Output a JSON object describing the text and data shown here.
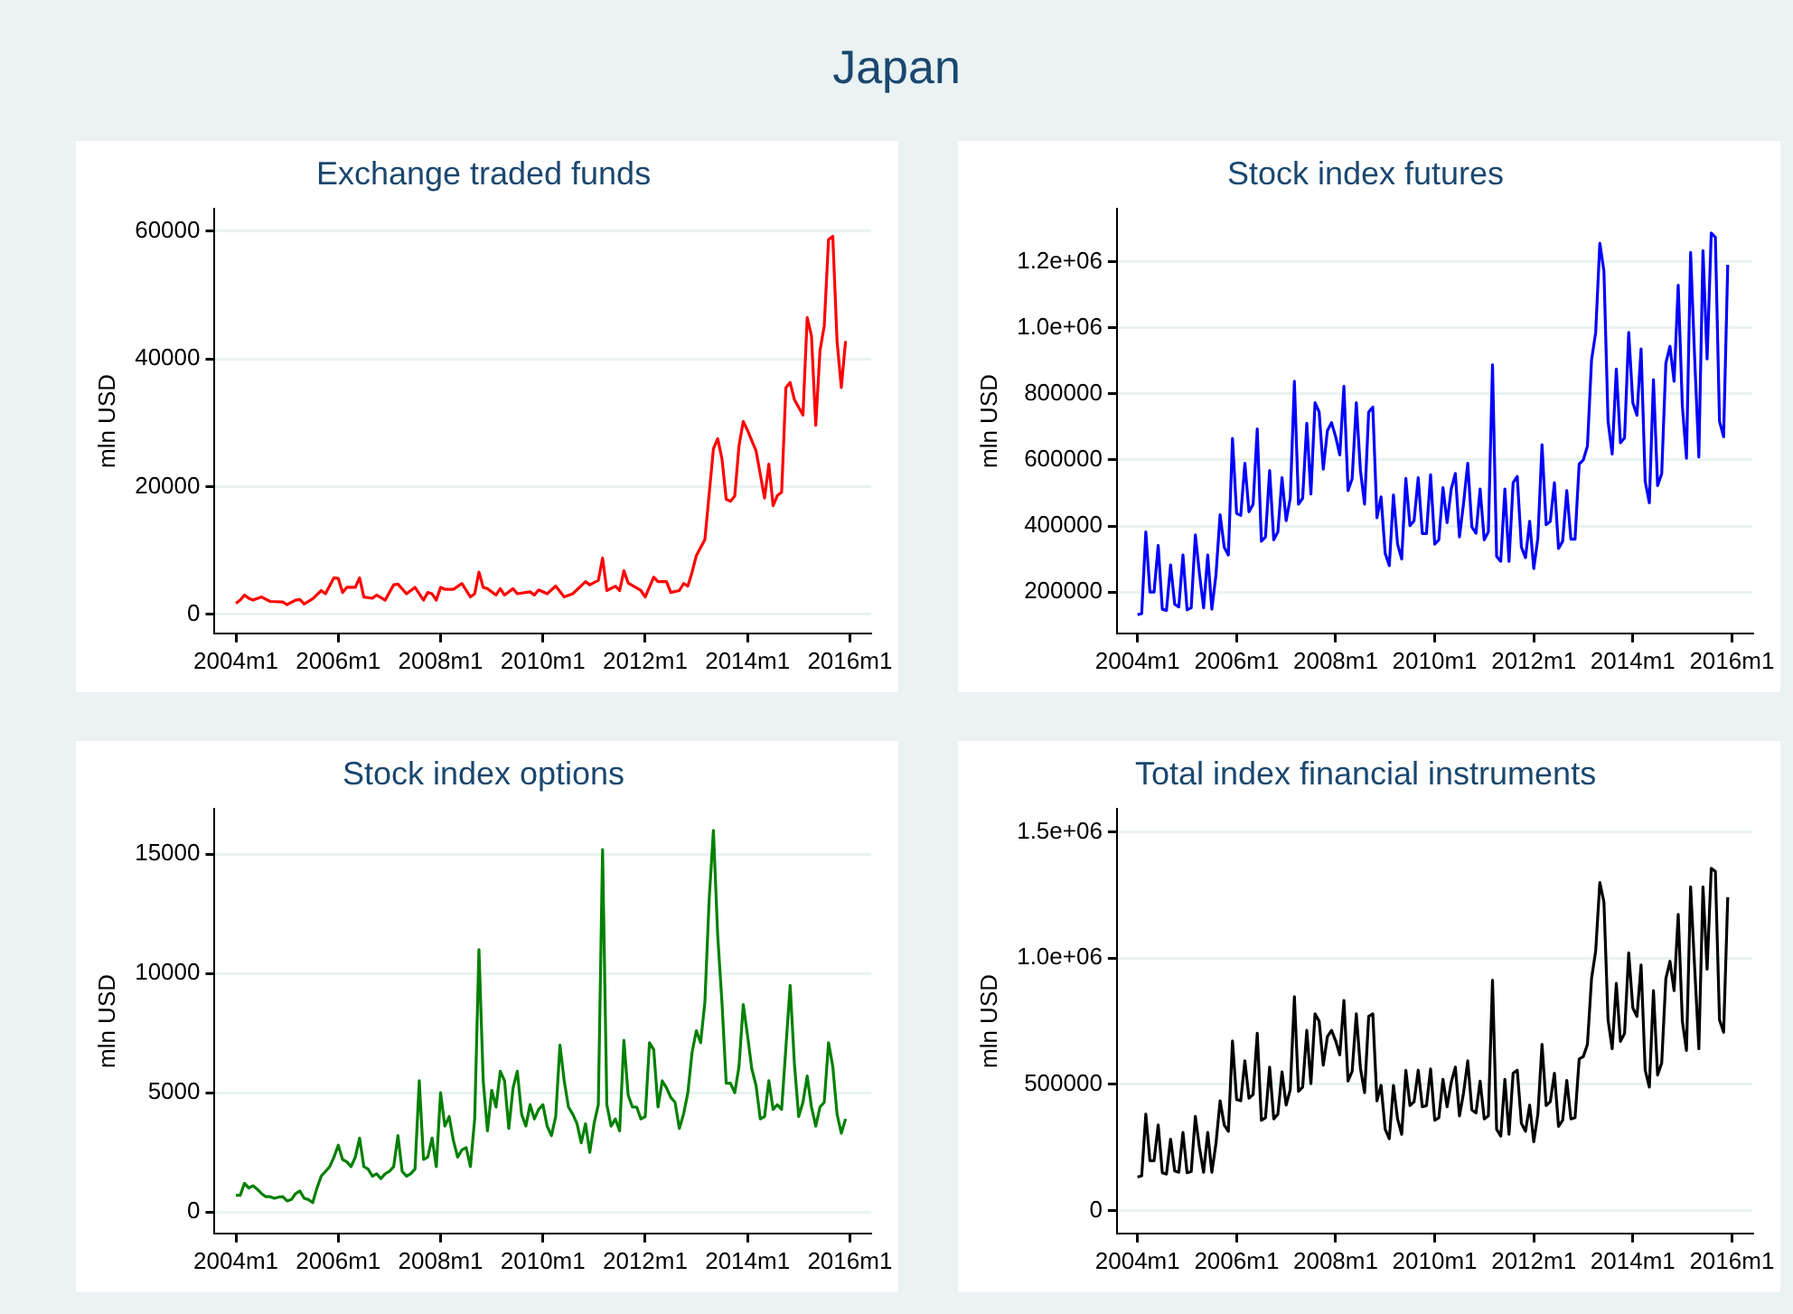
{
  "chart_data": [
    {
      "type": "other",
      "title": "Japan"
    },
    {
      "type": "line",
      "title": "Exchange traded funds",
      "ylabel": "mln USD",
      "grid": "y",
      "legend": false,
      "marker": "none",
      "line_style": "solid",
      "xlim": [
        "2003-08",
        "2016-06"
      ],
      "xticks": [
        {
          "value": "2004-01",
          "label": "2004m1"
        },
        {
          "value": "2006-01",
          "label": "2006m1"
        },
        {
          "value": "2008-01",
          "label": "2008m1"
        },
        {
          "value": "2010-01",
          "label": "2010m1"
        },
        {
          "value": "2012-01",
          "label": "2012m1"
        },
        {
          "value": "2014-01",
          "label": "2014m1"
        },
        {
          "value": "2016-01",
          "label": "2016m1"
        }
      ],
      "ylim": [
        -3000,
        63500
      ],
      "yticks": [
        0,
        20000,
        40000,
        60000
      ],
      "series": [
        {
          "color": "#ff0000",
          "x": [
            "2004-01",
            "2004-02",
            "2004-03",
            "2004-04",
            "2004-05",
            "2004-07",
            "2004-09",
            "2004-12",
            "2005-01",
            "2005-03",
            "2005-04",
            "2005-05",
            "2005-07",
            "2005-09",
            "2005-10",
            "2005-12",
            "2006-01",
            "2006-02",
            "2006-03",
            "2006-05",
            "2006-06",
            "2006-07",
            "2006-09",
            "2006-10",
            "2006-12",
            "2007-02",
            "2007-03",
            "2007-05",
            "2007-07",
            "2007-09",
            "2007-10",
            "2007-11",
            "2007-12",
            "2008-01",
            "2008-02",
            "2008-04",
            "2008-06",
            "2008-08",
            "2008-09",
            "2008-10",
            "2008-11",
            "2008-12",
            "2009-02",
            "2009-03",
            "2009-04",
            "2009-06",
            "2009-07",
            "2009-10",
            "2009-11",
            "2009-12",
            "2010-02",
            "2010-04",
            "2010-06",
            "2010-08",
            "2010-11",
            "2010-12",
            "2011-02",
            "2011-03",
            "2011-04",
            "2011-06",
            "2011-07",
            "2011-08",
            "2011-09",
            "2011-12",
            "2012-01",
            "2012-03",
            "2012-04",
            "2012-06",
            "2012-07",
            "2012-09",
            "2012-10",
            "2012-11",
            "2012-12",
            "2013-01",
            "2013-03",
            "2013-05",
            "2013-06",
            "2013-07",
            "2013-08",
            "2013-09",
            "2013-10",
            "2013-11",
            "2013-12",
            "2014-01",
            "2014-03",
            "2014-05",
            "2014-06",
            "2014-07",
            "2014-08",
            "2014-09",
            "2014-10",
            "2014-11",
            "2014-12",
            "2015-02",
            "2015-03",
            "2015-04",
            "2015-05",
            "2015-06",
            "2015-07",
            "2015-08",
            "2015-09",
            "2015-10",
            "2015-11",
            "2015-12"
          ],
          "values": [
            1700,
            2200,
            3000,
            2500,
            2200,
            2700,
            2000,
            1900,
            1500,
            2200,
            2300,
            1600,
            2400,
            3700,
            3200,
            5700,
            5600,
            3400,
            4200,
            4200,
            5700,
            2700,
            2500,
            3000,
            2200,
            4600,
            4700,
            3200,
            4200,
            2200,
            3400,
            3200,
            2200,
            4200,
            3900,
            3900,
            4800,
            2700,
            3200,
            6600,
            4200,
            4000,
            3000,
            4000,
            3000,
            4000,
            3200,
            3500,
            3000,
            3800,
            3200,
            4400,
            2700,
            3200,
            5100,
            4600,
            5300,
            8800,
            3700,
            4400,
            3700,
            6800,
            4900,
            3700,
            2700,
            5800,
            5100,
            5100,
            3400,
            3700,
            4800,
            4400,
            6600,
            9200,
            11700,
            25900,
            27500,
            24400,
            18000,
            17700,
            18500,
            26400,
            30200,
            28800,
            25600,
            18200,
            23500,
            17000,
            18600,
            19100,
            35500,
            36300,
            33600,
            31200,
            46500,
            43600,
            29600,
            41300,
            45200,
            58700,
            59200,
            42800,
            35500,
            42800
          ]
        }
      ]
    },
    {
      "type": "line",
      "title": "Stock index futures",
      "ylabel": "mln USD",
      "grid": "y",
      "legend": false,
      "marker": "none",
      "line_style": "solid",
      "xlim": [
        "2003-08",
        "2016-06"
      ],
      "xticks": [
        {
          "value": "2004-01",
          "label": "2004m1"
        },
        {
          "value": "2006-01",
          "label": "2006m1"
        },
        {
          "value": "2008-01",
          "label": "2008m1"
        },
        {
          "value": "2010-01",
          "label": "2010m1"
        },
        {
          "value": "2012-01",
          "label": "2012m1"
        },
        {
          "value": "2014-01",
          "label": "2014m1"
        },
        {
          "value": "2016-01",
          "label": "2016m1"
        }
      ],
      "ylim": [
        75000,
        1360000
      ],
      "yticks": [
        200000,
        400000,
        600000,
        800000,
        {
          "value": 1000000,
          "label": "1.0e+06"
        },
        {
          "value": 1200000,
          "label": "1.2e+06"
        }
      ],
      "series": [
        {
          "color": "#0000ff",
          "x": [
            "2004-01",
            "2004-02",
            "2004-03",
            "2004-04",
            "2004-05",
            "2004-06",
            "2004-07",
            "2004-08",
            "2004-09",
            "2004-10",
            "2004-11",
            "2004-12",
            "2005-01",
            "2005-02",
            "2005-03",
            "2005-04",
            "2005-05",
            "2005-06",
            "2005-07",
            "2005-08",
            "2005-09",
            "2005-10",
            "2005-11",
            "2005-12",
            "2006-01",
            "2006-02",
            "2006-03",
            "2006-04",
            "2006-05",
            "2006-06",
            "2006-07",
            "2006-08",
            "2006-09",
            "2006-10",
            "2006-11",
            "2006-12",
            "2007-01",
            "2007-02",
            "2007-03",
            "2007-04",
            "2007-05",
            "2007-06",
            "2007-07",
            "2007-08",
            "2007-09",
            "2007-10",
            "2007-11",
            "2007-12",
            "2008-01",
            "2008-02",
            "2008-03",
            "2008-04",
            "2008-05",
            "2008-06",
            "2008-07",
            "2008-08",
            "2008-09",
            "2008-10",
            "2008-11",
            "2008-12",
            "2009-01",
            "2009-02",
            "2009-03",
            "2009-04",
            "2009-05",
            "2009-06",
            "2009-07",
            "2009-08",
            "2009-09",
            "2009-10",
            "2009-11",
            "2009-12",
            "2010-01",
            "2010-02",
            "2010-03",
            "2010-04",
            "2010-05",
            "2010-06",
            "2010-07",
            "2010-08",
            "2010-09",
            "2010-10",
            "2010-11",
            "2010-12",
            "2011-01",
            "2011-02",
            "2011-03",
            "2011-04",
            "2011-05",
            "2011-06",
            "2011-07",
            "2011-08",
            "2011-09",
            "2011-10",
            "2011-11",
            "2011-12",
            "2012-01",
            "2012-02",
            "2012-03",
            "2012-04",
            "2012-05",
            "2012-06",
            "2012-07",
            "2012-08",
            "2012-09",
            "2012-10",
            "2012-11",
            "2012-12",
            "2013-01",
            "2013-02",
            "2013-03",
            "2013-04",
            "2013-05",
            "2013-06",
            "2013-07",
            "2013-08",
            "2013-09",
            "2013-10",
            "2013-11",
            "2013-12",
            "2014-01",
            "2014-02",
            "2014-03",
            "2014-04",
            "2014-05",
            "2014-06",
            "2014-07",
            "2014-08",
            "2014-09",
            "2014-10",
            "2014-11",
            "2014-12",
            "2015-01",
            "2015-02",
            "2015-03",
            "2015-04",
            "2015-05",
            "2015-06",
            "2015-07",
            "2015-08",
            "2015-09",
            "2015-10",
            "2015-11",
            "2015-12"
          ],
          "values": [
            131000,
            135000,
            382000,
            200000,
            200000,
            341000,
            148000,
            144000,
            282000,
            163000,
            155000,
            312000,
            146000,
            152000,
            373000,
            256000,
            152000,
            312000,
            148000,
            252000,
            434000,
            336000,
            312000,
            665000,
            438000,
            432000,
            590000,
            443000,
            466000,
            694000,
            354000,
            367000,
            568000,
            358000,
            382000,
            546000,
            416000,
            484000,
            838000,
            466000,
            484000,
            711000,
            497000,
            773000,
            745000,
            572000,
            689000,
            713000,
            670000,
            615000,
            823000,
            507000,
            544000,
            773000,
            568000,
            466000,
            745000,
            760000,
            425000,
            488000,
            317000,
            280000,
            494000,
            345000,
            300000,
            544000,
            401000,
            416000,
            546000,
            377000,
            377000,
            555000,
            345000,
            358000,
            516000,
            410000,
            512000,
            559000,
            367000,
            470000,
            590000,
            397000,
            378000,
            512000,
            358000,
            382000,
            888000,
            308000,
            293000,
            512000,
            293000,
            531000,
            550000,
            336000,
            304000,
            414000,
            271000,
            364000,
            646000,
            404000,
            414000,
            531000,
            332000,
            354000,
            507000,
            360000,
            360000,
            587000,
            600000,
            642000,
            903000,
            986000,
            1256000,
            1172000,
            717000,
            618000,
            875000,
            652000,
            667000,
            986000,
            773000,
            735000,
            936000,
            535000,
            470000,
            843000,
            522000,
            559000,
            893000,
            944000,
            838000,
            1129000,
            763000,
            605000,
            1228000,
            903000,
            609000,
            1234000,
            906000,
            1287000,
            1274000,
            717000,
            670000,
            1191000
          ]
        }
      ]
    },
    {
      "type": "line",
      "title": "Stock index options",
      "ylabel": "mln USD",
      "grid": "y",
      "legend": false,
      "marker": "none",
      "line_style": "solid",
      "xlim": [
        "2003-08",
        "2016-06"
      ],
      "xticks": [
        {
          "value": "2004-01",
          "label": "2004m1"
        },
        {
          "value": "2006-01",
          "label": "2006m1"
        },
        {
          "value": "2008-01",
          "label": "2008m1"
        },
        {
          "value": "2010-01",
          "label": "2010m1"
        },
        {
          "value": "2012-01",
          "label": "2012m1"
        },
        {
          "value": "2014-01",
          "label": "2014m1"
        },
        {
          "value": "2016-01",
          "label": "2016m1"
        }
      ],
      "ylim": [
        -900,
        16900
      ],
      "yticks": [
        0,
        5000,
        10000,
        15000
      ],
      "series": [
        {
          "color": "#008000",
          "x": [
            "2004-01",
            "2004-02",
            "2004-03",
            "2004-04",
            "2004-05",
            "2004-06",
            "2004-07",
            "2004-08",
            "2004-09",
            "2004-10",
            "2004-11",
            "2004-12",
            "2005-01",
            "2005-02",
            "2005-03",
            "2005-04",
            "2005-05",
            "2005-06",
            "2005-07",
            "2005-08",
            "2005-09",
            "2005-10",
            "2005-11",
            "2005-12",
            "2006-01",
            "2006-02",
            "2006-03",
            "2006-04",
            "2006-05",
            "2006-06",
            "2006-07",
            "2006-08",
            "2006-09",
            "2006-10",
            "2006-11",
            "2006-12",
            "2007-01",
            "2007-02",
            "2007-03",
            "2007-04",
            "2007-05",
            "2007-06",
            "2007-07",
            "2007-08",
            "2007-09",
            "2007-10",
            "2007-11",
            "2007-12",
            "2008-01",
            "2008-02",
            "2008-03",
            "2008-04",
            "2008-05",
            "2008-06",
            "2008-07",
            "2008-08",
            "2008-09",
            "2008-10",
            "2008-11",
            "2008-12",
            "2009-01",
            "2009-02",
            "2009-03",
            "2009-04",
            "2009-05",
            "2009-06",
            "2009-07",
            "2009-08",
            "2009-09",
            "2009-10",
            "2009-11",
            "2009-12",
            "2010-01",
            "2010-02",
            "2010-03",
            "2010-04",
            "2010-05",
            "2010-06",
            "2010-07",
            "2010-08",
            "2010-09",
            "2010-10",
            "2010-11",
            "2010-12",
            "2011-01",
            "2011-02",
            "2011-03",
            "2011-04",
            "2011-05",
            "2011-06",
            "2011-07",
            "2011-08",
            "2011-09",
            "2011-10",
            "2011-11",
            "2011-12",
            "2012-01",
            "2012-02",
            "2012-03",
            "2012-04",
            "2012-05",
            "2012-06",
            "2012-07",
            "2012-08",
            "2012-09",
            "2012-10",
            "2012-11",
            "2012-12",
            "2013-01",
            "2013-02",
            "2013-03",
            "2013-04",
            "2013-05",
            "2013-06",
            "2013-07",
            "2013-08",
            "2013-09",
            "2013-10",
            "2013-11",
            "2013-12",
            "2014-01",
            "2014-02",
            "2014-03",
            "2014-04",
            "2014-05",
            "2014-06",
            "2014-07",
            "2014-08",
            "2014-09",
            "2014-11",
            "2014-12",
            "2015-01",
            "2015-02",
            "2015-03",
            "2015-04",
            "2015-05",
            "2015-06",
            "2015-07",
            "2015-08",
            "2015-09",
            "2015-10",
            "2015-11",
            "2015-12"
          ],
          "values": [
            700,
            700,
            1200,
            1000,
            1100,
            950,
            770,
            640,
            640,
            570,
            620,
            640,
            460,
            520,
            770,
            880,
            570,
            520,
            390,
            1000,
            1500,
            1700,
            1900,
            2300,
            2800,
            2200,
            2100,
            1900,
            2300,
            3100,
            1900,
            1800,
            1500,
            1600,
            1400,
            1600,
            1700,
            1900,
            3200,
            1700,
            1500,
            1600,
            1800,
            5500,
            2200,
            2300,
            3100,
            1900,
            5000,
            3600,
            4000,
            3000,
            2300,
            2600,
            2700,
            1900,
            3900,
            11000,
            5500,
            3400,
            5100,
            4400,
            5900,
            5500,
            3500,
            5200,
            5900,
            4100,
            3600,
            4500,
            3900,
            4300,
            4500,
            3600,
            3200,
            4000,
            7000,
            5500,
            4400,
            4100,
            3700,
            2900,
            3700,
            2500,
            3700,
            4500,
            15200,
            4500,
            3600,
            3900,
            3400,
            7200,
            4900,
            4400,
            4400,
            3900,
            4000,
            7100,
            6800,
            4400,
            5500,
            5200,
            4800,
            4600,
            3500,
            4100,
            5000,
            6700,
            7600,
            7100,
            8800,
            13100,
            16000,
            11600,
            8800,
            5400,
            5400,
            5000,
            6100,
            8700,
            7400,
            6000,
            5300,
            3900,
            4000,
            5500,
            4300,
            4500,
            4300,
            9500,
            6200,
            4000,
            4600,
            5700,
            4400,
            3600,
            4400,
            4600,
            7100,
            6100,
            4100,
            3300,
            3900
          ]
        }
      ]
    },
    {
      "type": "line",
      "title": "Total index financial instruments",
      "ylabel": "mln USD",
      "grid": "y",
      "legend": false,
      "marker": "none",
      "line_style": "solid",
      "xlim": [
        "2003-08",
        "2016-06"
      ],
      "xticks": [
        {
          "value": "2004-01",
          "label": "2004m1"
        },
        {
          "value": "2006-01",
          "label": "2006m1"
        },
        {
          "value": "2008-01",
          "label": "2008m1"
        },
        {
          "value": "2010-01",
          "label": "2010m1"
        },
        {
          "value": "2012-01",
          "label": "2012m1"
        },
        {
          "value": "2014-01",
          "label": "2014m1"
        },
        {
          "value": "2016-01",
          "label": "2016m1"
        }
      ],
      "ylim": [
        -90000,
        1590000
      ],
      "yticks": [
        0,
        500000,
        {
          "value": 1000000,
          "label": "1.0e+06"
        },
        {
          "value": 1500000,
          "label": "1.5e+06"
        }
      ],
      "series": [
        {
          "color": "#000000",
          "x": [
            "2004-01",
            "2004-02",
            "2004-03",
            "2004-04",
            "2004-05",
            "2004-06",
            "2004-07",
            "2004-08",
            "2004-09",
            "2004-10",
            "2004-11",
            "2004-12",
            "2005-01",
            "2005-02",
            "2005-03",
            "2005-04",
            "2005-05",
            "2005-06",
            "2005-07",
            "2005-08",
            "2005-09",
            "2005-10",
            "2005-11",
            "2005-12",
            "2006-01",
            "2006-02",
            "2006-03",
            "2006-04",
            "2006-05",
            "2006-06",
            "2006-07",
            "2006-08",
            "2006-09",
            "2006-10",
            "2006-11",
            "2006-12",
            "2007-01",
            "2007-02",
            "2007-03",
            "2007-04",
            "2007-05",
            "2007-06",
            "2007-07",
            "2007-08",
            "2007-09",
            "2007-10",
            "2007-11",
            "2007-12",
            "2008-01",
            "2008-02",
            "2008-03",
            "2008-04",
            "2008-05",
            "2008-06",
            "2008-07",
            "2008-08",
            "2008-09",
            "2008-10",
            "2008-11",
            "2008-12",
            "2009-01",
            "2009-02",
            "2009-03",
            "2009-04",
            "2009-05",
            "2009-06",
            "2009-07",
            "2009-08",
            "2009-09",
            "2009-10",
            "2009-11",
            "2009-12",
            "2010-01",
            "2010-02",
            "2010-03",
            "2010-04",
            "2010-05",
            "2010-06",
            "2010-07",
            "2010-08",
            "2010-09",
            "2010-10",
            "2010-11",
            "2010-12",
            "2011-01",
            "2011-02",
            "2011-03",
            "2011-04",
            "2011-05",
            "2011-06",
            "2011-07",
            "2011-08",
            "2011-09",
            "2011-10",
            "2011-11",
            "2011-12",
            "2012-01",
            "2012-02",
            "2012-03",
            "2012-04",
            "2012-05",
            "2012-06",
            "2012-07",
            "2012-08",
            "2012-09",
            "2012-10",
            "2012-11",
            "2012-12",
            "2013-01",
            "2013-02",
            "2013-03",
            "2013-04",
            "2013-05",
            "2013-06",
            "2013-07",
            "2013-08",
            "2013-09",
            "2013-10",
            "2013-11",
            "2013-12",
            "2014-01",
            "2014-02",
            "2014-03",
            "2014-04",
            "2014-05",
            "2014-06",
            "2014-07",
            "2014-08",
            "2014-09",
            "2014-10",
            "2014-11",
            "2014-12",
            "2015-01",
            "2015-02",
            "2015-03",
            "2015-04",
            "2015-05",
            "2015-06",
            "2015-07",
            "2015-08",
            "2015-09",
            "2015-10",
            "2015-11",
            "2015-12"
          ],
          "values": [
            133000,
            138000,
            382000,
            198000,
            198000,
            339000,
            150000,
            145000,
            283000,
            157000,
            152000,
            310000,
            150000,
            155000,
            373000,
            249000,
            152000,
            310000,
            152000,
            266000,
            435000,
            339000,
            314000,
            672000,
            440000,
            435000,
            593000,
            445000,
            460000,
            702000,
            358000,
            368000,
            568000,
            363000,
            382000,
            549000,
            418000,
            479000,
            847000,
            472000,
            489000,
            714000,
            503000,
            779000,
            750000,
            576000,
            689000,
            714000,
            672000,
            617000,
            832000,
            513000,
            552000,
            779000,
            564000,
            467000,
            769000,
            779000,
            435000,
            496000,
            322000,
            285000,
            496000,
            363000,
            302000,
            556000,
            416000,
            431000,
            556000,
            411000,
            416000,
            561000,
            358000,
            368000,
            520000,
            411000,
            508000,
            568000,
            375000,
            467000,
            593000,
            399000,
            387000,
            513000,
            363000,
            375000,
            912000,
            322000,
            295000,
            520000,
            302000,
            544000,
            556000,
            346000,
            314000,
            418000,
            273000,
            382000,
            658000,
            416000,
            431000,
            544000,
            334000,
            358000,
            515000,
            363000,
            368000,
            600000,
            610000,
            658000,
            919000,
            1028000,
            1299000,
            1222000,
            755000,
            641000,
            900000,
            670000,
            702000,
            1021000,
            803000,
            769000,
            972000,
            556000,
            489000,
            871000,
            537000,
            585000,
            919000,
            987000,
            871000,
            1173000,
            750000,
            634000,
            1282000,
            956000,
            641000,
            1282000,
            956000,
            1355000,
            1343000,
            755000,
            706000,
            1241000
          ]
        }
      ]
    }
  ]
}
